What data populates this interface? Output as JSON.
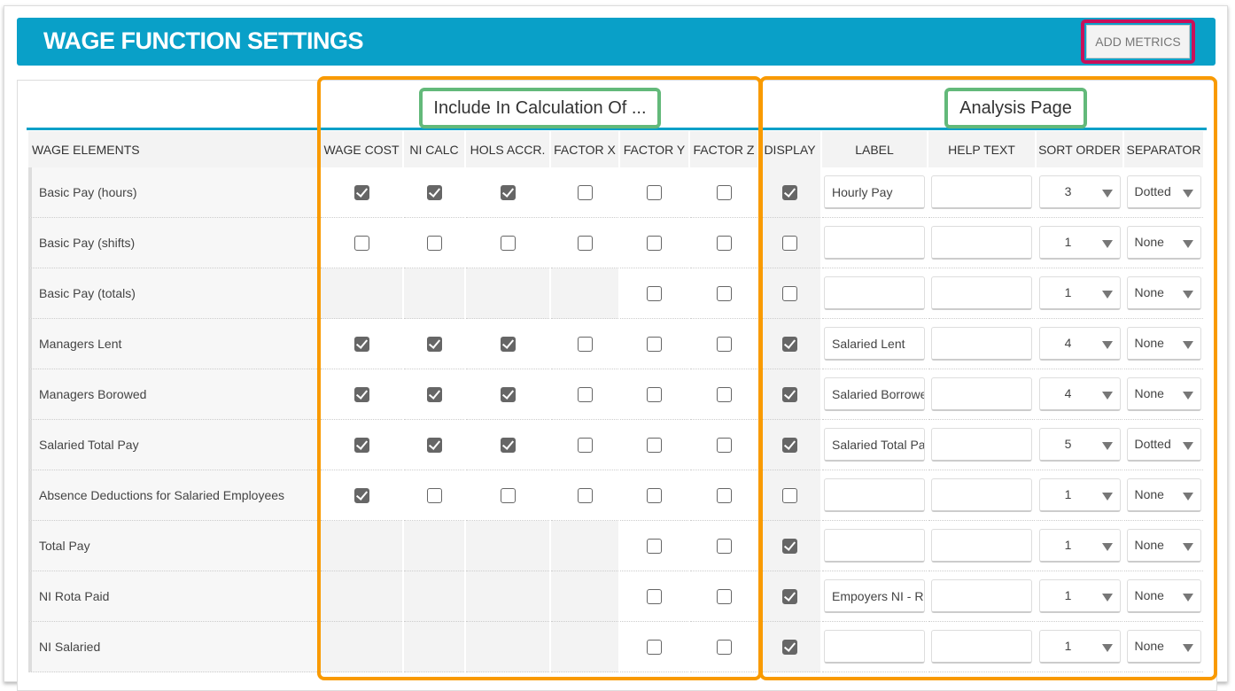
{
  "header": {
    "title": "WAGE FUNCTION SETTINGS",
    "add_metrics_label": "ADD METRICS"
  },
  "groups": {
    "include": "Include In Calculation Of ...",
    "analysis": "Analysis Page"
  },
  "columns": [
    "WAGE ELEMENTS",
    "WAGE COST",
    "NI CALC",
    "HOLS ACCR.",
    "FACTOR X",
    "FACTOR Y",
    "FACTOR Z",
    "DISPLAY",
    "LABEL",
    "HELP TEXT",
    "SORT ORDER",
    "SEPARATOR"
  ],
  "rows": [
    {
      "name": "Basic Pay (hours)",
      "calc": [
        true,
        true,
        true,
        false,
        false,
        false
      ],
      "display": true,
      "label": "Hourly Pay",
      "help": "",
      "sort": "3",
      "separator": "Dotted"
    },
    {
      "name": "Basic Pay (shifts)",
      "calc": [
        false,
        false,
        false,
        false,
        false,
        false
      ],
      "display": false,
      "label": "",
      "help": "",
      "sort": "1",
      "separator": "None"
    },
    {
      "name": "Basic Pay (totals)",
      "calc": [
        null,
        null,
        null,
        null,
        false,
        false
      ],
      "display": false,
      "label": "",
      "help": "",
      "sort": "1",
      "separator": "None"
    },
    {
      "name": "Managers Lent",
      "calc": [
        true,
        true,
        true,
        false,
        false,
        false
      ],
      "display": true,
      "label": "Salaried Lent",
      "help": "",
      "sort": "4",
      "separator": "None"
    },
    {
      "name": "Managers Borowed",
      "calc": [
        true,
        true,
        true,
        false,
        false,
        false
      ],
      "display": true,
      "label": "Salaried Borrowed",
      "help": "",
      "sort": "4",
      "separator": "None"
    },
    {
      "name": "Salaried Total Pay",
      "calc": [
        true,
        true,
        true,
        false,
        false,
        false
      ],
      "display": true,
      "label": "Salaried Total Pay",
      "help": "",
      "sort": "5",
      "separator": "Dotted"
    },
    {
      "name": "Absence Deductions for Salaried Employees",
      "calc": [
        true,
        false,
        false,
        false,
        false,
        false
      ],
      "display": false,
      "label": "",
      "help": "",
      "sort": "1",
      "separator": "None"
    },
    {
      "name": "Total Pay",
      "calc": [
        null,
        null,
        null,
        null,
        false,
        false
      ],
      "display": true,
      "label": "",
      "help": "",
      "sort": "1",
      "separator": "None"
    },
    {
      "name": "NI Rota Paid",
      "calc": [
        null,
        null,
        null,
        null,
        false,
        false
      ],
      "display": true,
      "label": "Empoyers NI - Rota",
      "help": "",
      "sort": "1",
      "separator": "None"
    },
    {
      "name": "NI Salaried",
      "calc": [
        null,
        null,
        null,
        null,
        false,
        false
      ],
      "display": true,
      "label": "",
      "help": "",
      "sort": "1",
      "separator": "None"
    }
  ]
}
